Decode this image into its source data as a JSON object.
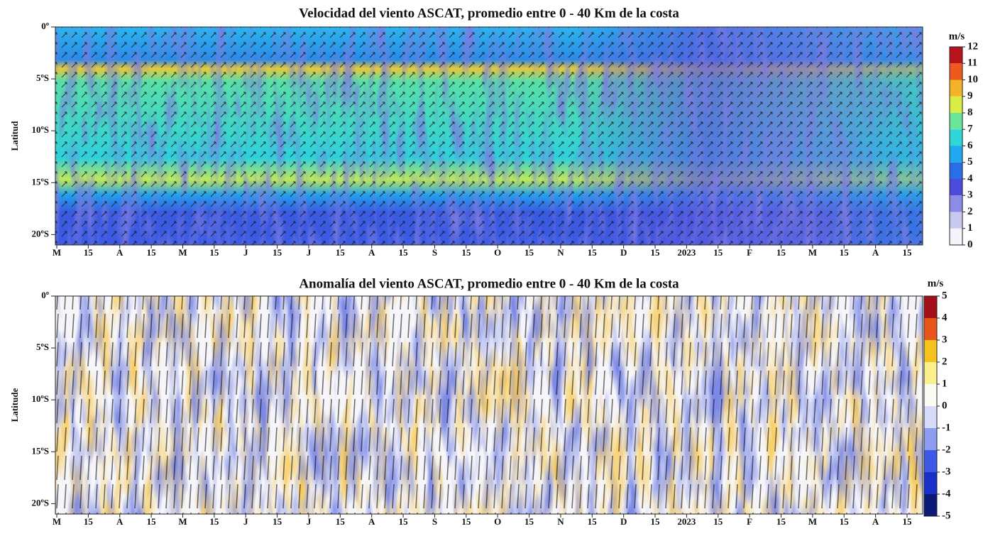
{
  "chart_data": [
    {
      "type": "heatmap",
      "title": "Velocidad del viento ASCAT, promedio entre 0 - 40 Km de la costa",
      "ylabel": "Latitud",
      "categories": [
        "M",
        "15",
        "A",
        "15",
        "M",
        "15",
        "J",
        "15",
        "J",
        "15",
        "A",
        "15",
        "S",
        "15",
        "O",
        "15",
        "N",
        "15",
        "D",
        "15",
        "2023",
        "15",
        "F",
        "15",
        "M",
        "15",
        "A",
        "15"
      ],
      "ylim": [
        0,
        -21
      ],
      "yticks": [
        {
          "value": 0,
          "label": "0º"
        },
        {
          "value": -5,
          "label": "5ºS"
        },
        {
          "value": -10,
          "label": "10ºS"
        },
        {
          "value": -15,
          "label": "15ºS"
        },
        {
          "value": -20,
          "label": "20ºS"
        }
      ],
      "colorbar": {
        "label": "m/s",
        "ticks": [
          0,
          1,
          2,
          3,
          4,
          5,
          6,
          7,
          8,
          9,
          10,
          11,
          12
        ],
        "colors": [
          "#f4f4fa",
          "#c9c9ef",
          "#8c8ce6",
          "#4b4bdc",
          "#2a6ee6",
          "#22a8f0",
          "#2ed6d8",
          "#6ae69a",
          "#d8ee44",
          "#f4b42a",
          "#ee5a1e",
          "#b8141c"
        ]
      }
    },
    {
      "type": "heatmap",
      "title": "Anomalía del viento ASCAT, promedio entre 0 - 40 Km de la costa",
      "ylabel": "Latitude",
      "categories": [
        "M",
        "15",
        "A",
        "15",
        "M",
        "15",
        "J",
        "15",
        "J",
        "15",
        "A",
        "15",
        "S",
        "15",
        "O",
        "15",
        "N",
        "15",
        "D",
        "15",
        "2023",
        "15",
        "F",
        "15",
        "M",
        "15",
        "A",
        "15"
      ],
      "ylim": [
        0,
        -21
      ],
      "yticks": [
        {
          "value": 0,
          "label": "0º"
        },
        {
          "value": -5,
          "label": "5ºS"
        },
        {
          "value": -10,
          "label": "10ºS"
        },
        {
          "value": -15,
          "label": "15ºS"
        },
        {
          "value": -20,
          "label": "20ºS"
        }
      ],
      "colorbar": {
        "label": "m/s",
        "ticks": [
          -5,
          -4,
          -3,
          -2,
          -1,
          0,
          1,
          2,
          3,
          4,
          5
        ],
        "colors": [
          "#0c1a78",
          "#1a2ec8",
          "#3c5ae6",
          "#8c9cf0",
          "#d6dcf8",
          "#fbfbf6",
          "#fbf08c",
          "#f6c21e",
          "#e8561c",
          "#a4101a"
        ]
      }
    }
  ]
}
